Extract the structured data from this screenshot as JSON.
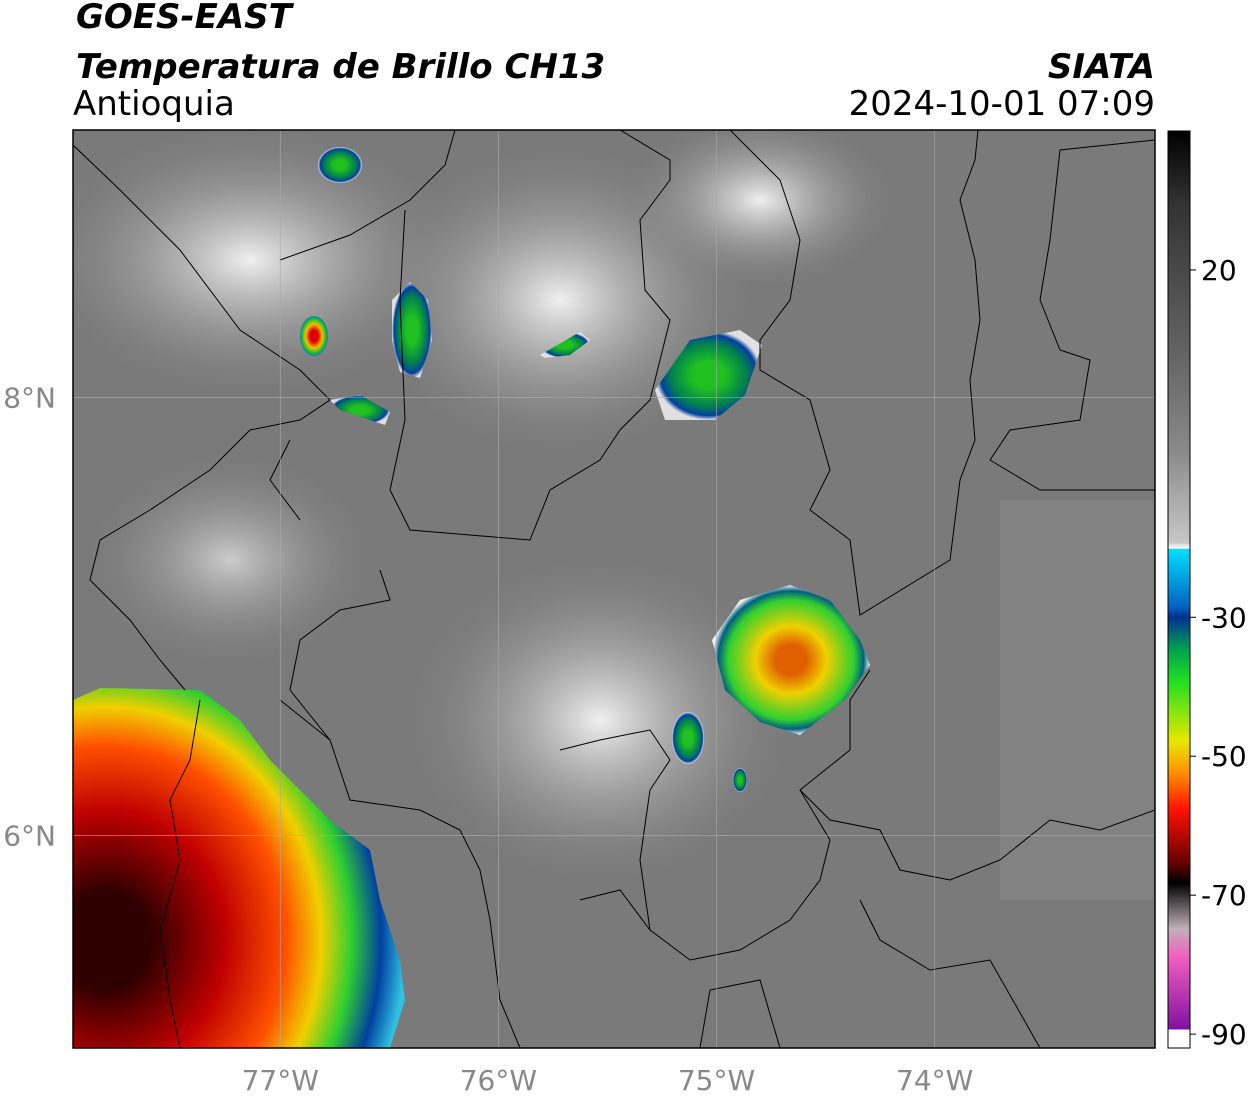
{
  "header": {
    "satellite": "GOES-EAST",
    "title": "Temperatura de Brillo CH13",
    "region": "Antioquia",
    "agency": "SIATA",
    "datetime": "2024-10-01 07:09"
  },
  "map": {
    "xlim": [
      -77.95,
      -72.99
    ],
    "ylim": [
      5.03,
      9.22
    ],
    "xticks": [
      {
        "value": -77,
        "label": "77°W"
      },
      {
        "value": -76,
        "label": "76°W"
      },
      {
        "value": -75,
        "label": "75°W"
      },
      {
        "value": -74,
        "label": "74°W"
      }
    ],
    "yticks": [
      {
        "value": 8,
        "label": "8°N"
      },
      {
        "value": 6,
        "label": "6°N"
      }
    ],
    "grid": true
  },
  "colorbar": {
    "lim": [
      -92,
      40
    ],
    "ticks": [
      20,
      -30,
      -50,
      -70,
      -90
    ]
  }
}
